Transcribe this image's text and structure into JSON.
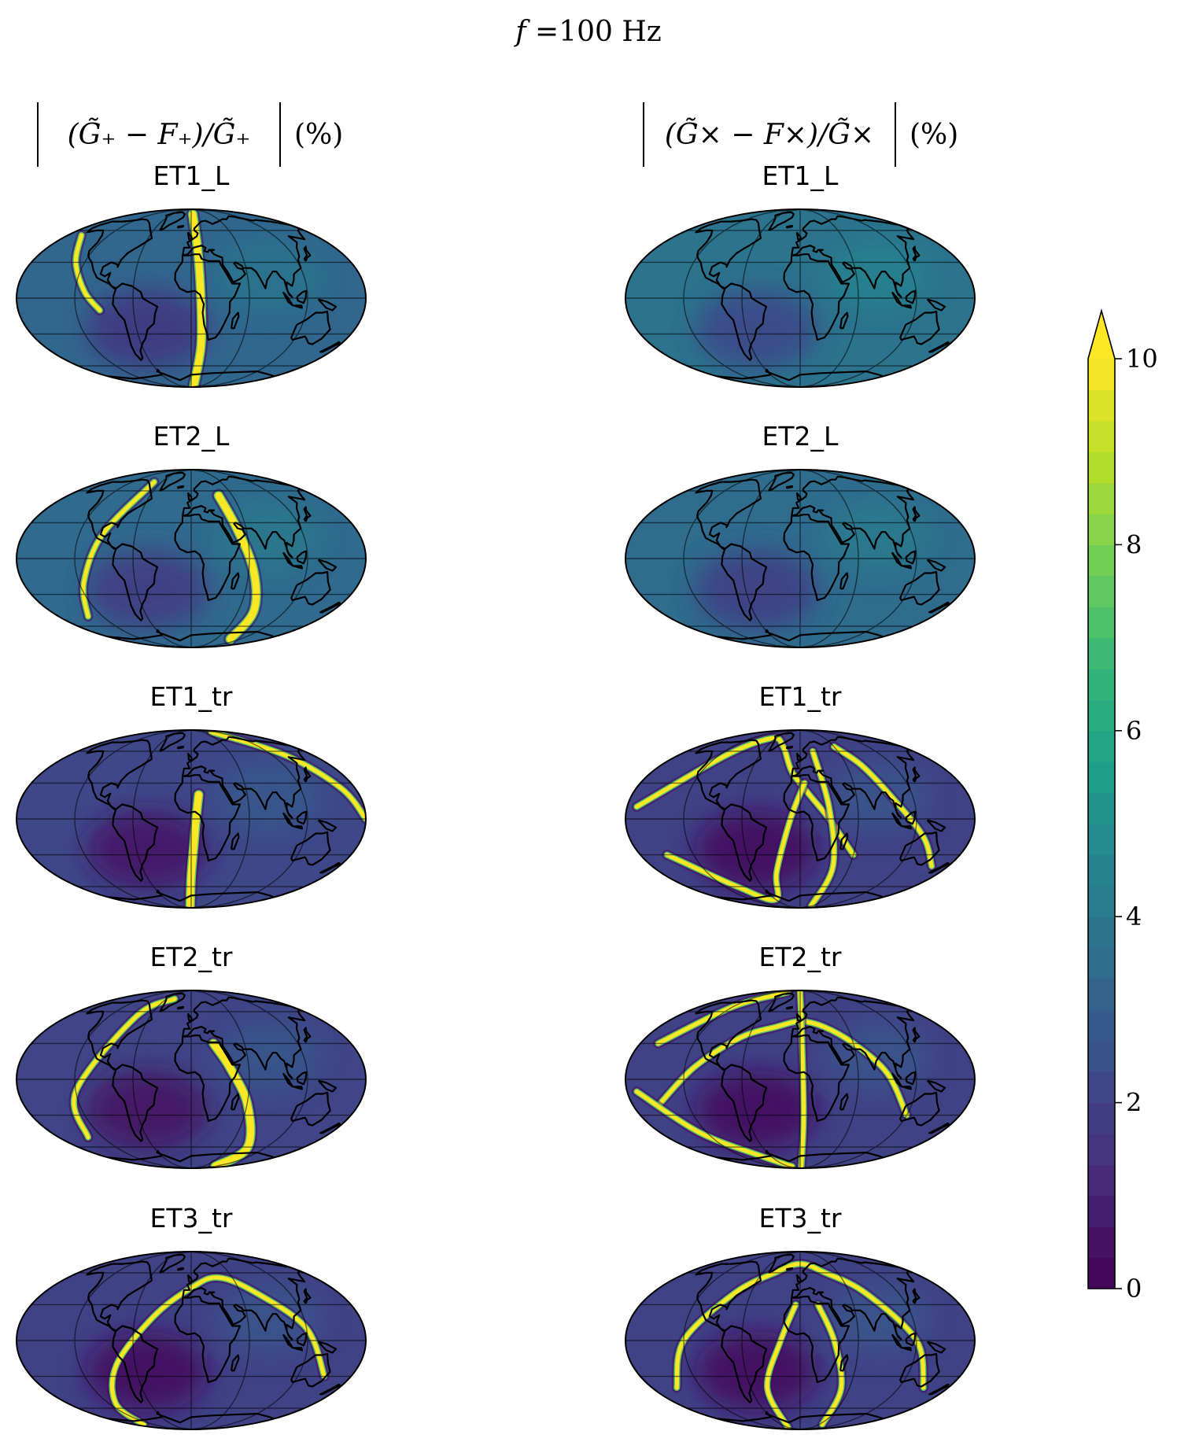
{
  "figure": {
    "suptitle": "f =100 Hz",
    "suptitle_var": "f",
    "suptitle_value": " =100 Hz"
  },
  "columns": [
    {
      "title": "|(G̃₊ − F₊)/G̃₊| (%)",
      "title_math": "(G̃₊ − F₊)/G̃₊",
      "title_unit": "(%)"
    },
    {
      "title": "|(G̃ₓ − Fₓ)/G̃ₓ| (%)",
      "title_math": "(G̃× − F×)/G̃×",
      "title_unit": "(%)"
    }
  ],
  "rows": [
    "ET1_L",
    "ET2_L",
    "ET1_tr",
    "ET2_tr",
    "ET3_tr"
  ],
  "colormap": {
    "name": "viridis",
    "colors": [
      "#440154",
      "#482878",
      "#3e4989",
      "#31688e",
      "#26828e",
      "#1f9e89",
      "#35b779",
      "#6ece58",
      "#b5de2b",
      "#fde725"
    ]
  },
  "chart_data": {
    "type": "heatmap",
    "projection": "mollweide",
    "grid": true,
    "coastlines": true,
    "colorbar": {
      "location": "right",
      "range": [
        0,
        10
      ],
      "extend": "max",
      "ticks": [
        0,
        2,
        4,
        6,
        8,
        10
      ],
      "tick_labels": [
        "0",
        "2",
        "4",
        "6",
        "8",
        "10"
      ]
    },
    "panels": [
      {
        "row": "ET1_L",
        "component": "plus",
        "background": 3.3,
        "bands": [
          {
            "lon": [
              -160,
              -130,
              -110,
              -95
            ],
            "lat": [
              55,
              30,
              5,
              -10
            ],
            "peak": 10
          },
          {
            "lon": [
              5,
              8,
              10,
              12,
              14
            ],
            "lat": [
              80,
              40,
              0,
              -40,
              -85
            ],
            "peak": 10,
            "width": 9
          }
        ]
      },
      {
        "row": "ET1_L",
        "component": "cross",
        "background": 3.8,
        "bands": []
      },
      {
        "row": "ET2_L",
        "component": "plus",
        "background": 3.4,
        "bands": [
          {
            "lon": [
              -140,
              -115,
              -95,
              -75
            ],
            "lat": [
              -50,
              -20,
              20,
              70
            ],
            "peak": 10
          },
          {
            "lon": [
              40,
              50,
              65,
              80,
              95
            ],
            "lat": [
              55,
              25,
              -10,
              -45,
              -75
            ],
            "peak": 10,
            "width": 9
          }
        ]
      },
      {
        "row": "ET2_L",
        "component": "cross",
        "background": 3.5,
        "bands": []
      },
      {
        "row": "ET1_tr",
        "component": "plus",
        "background": 2.2,
        "bands": [
          {
            "lon": [
              100,
              140,
              165,
              180
            ],
            "lat": [
              85,
              55,
              25,
              0
            ],
            "peak": 10
          },
          {
            "lon": [
              -5,
              0,
              3,
              5,
              8
            ],
            "lat": [
              -85,
              -50,
              -20,
              0,
              20
            ],
            "peak": 10,
            "width": 9
          }
        ]
      },
      {
        "row": "ET1_tr",
        "component": "cross",
        "background": 2.0,
        "bands": [
          {
            "lon": [
              -170,
              -110,
              -70,
              -30,
              -10,
              10,
              30,
              60
            ],
            "lat": [
              10,
              55,
              75,
              65,
              40,
              20,
              0,
              -30
            ],
            "peak": 10
          },
          {
            "lon": [
              -150,
              -100,
              -60,
              -30,
              -10,
              5
            ],
            "lat": [
              -30,
              -60,
              -75,
              -45,
              0,
              30
            ],
            "peak": 10
          },
          {
            "lon": [
              60,
              80,
              100,
              130,
              160
            ],
            "lat": [
              65,
              45,
              15,
              -15,
              -40
            ],
            "peak": 10
          },
          {
            "lon": [
              20,
              30,
              40,
              55
            ],
            "lat": [
              60,
              10,
              -40,
              -85
            ],
            "peak": 10
          }
        ]
      },
      {
        "row": "ET2_tr",
        "component": "plus",
        "background": 2.1,
        "bands": [
          {
            "lon": [
              -140,
              -120,
              -80,
              -40
            ],
            "lat": [
              -50,
              -10,
              55,
              75
            ],
            "peak": 10
          },
          {
            "lon": [
              25,
              40,
              60,
              90,
              120
            ],
            "lat": [
              30,
              10,
              -20,
              -60,
              -85
            ],
            "peak": 10,
            "width": 9
          }
        ]
      },
      {
        "row": "ET2_tr",
        "component": "cross",
        "background": 2.0,
        "bands": [
          {
            "lon": [
              -150,
              -110,
              -70,
              -30,
              0,
              30,
              60,
              90,
              120
            ],
            "lat": [
              -20,
              10,
              35,
              45,
              50,
              45,
              30,
              5,
              -30
            ],
            "peak": 10
          },
          {
            "lon": [
              -170,
              -130,
              -80,
              -40
            ],
            "lat": [
              -10,
              -45,
              -70,
              -85
            ],
            "peak": 10
          },
          {
            "lon": [
              0,
              2,
              4,
              6
            ],
            "lat": [
              85,
              40,
              -30,
              -85
            ],
            "peak": 10
          },
          {
            "lon": [
              -160,
              -120,
              -60
            ],
            "lat": [
              30,
              65,
              85
            ],
            "peak": 10
          }
        ]
      },
      {
        "row": "ET3_tr",
        "component": "plus",
        "background": 2.0,
        "bands": [
          {
            "lon": [
              -150,
              -110,
              -80,
              -40,
              0,
              40,
              80,
              120,
              150
            ],
            "lat": [
              -80,
              -55,
              -20,
              20,
              45,
              55,
              40,
              10,
              -30
            ],
            "peak": 10
          }
        ]
      },
      {
        "row": "ET3_tr",
        "component": "cross",
        "background": 2.0,
        "bands": [
          {
            "lon": [
              -150,
              -120,
              -80,
              -40,
              0,
              40,
              80,
              120,
              150
            ],
            "lat": [
              -40,
              0,
              40,
              60,
              70,
              60,
              40,
              0,
              -40
            ],
            "peak": 10
          },
          {
            "lon": [
              -60,
              -40,
              -20,
              -5
            ],
            "lat": [
              -85,
              -40,
              0,
              30
            ],
            "peak": 10
          },
          {
            "lon": [
              20,
              35,
              50,
              70
            ],
            "lat": [
              30,
              0,
              -40,
              -80
            ],
            "peak": 10
          }
        ]
      }
    ]
  }
}
